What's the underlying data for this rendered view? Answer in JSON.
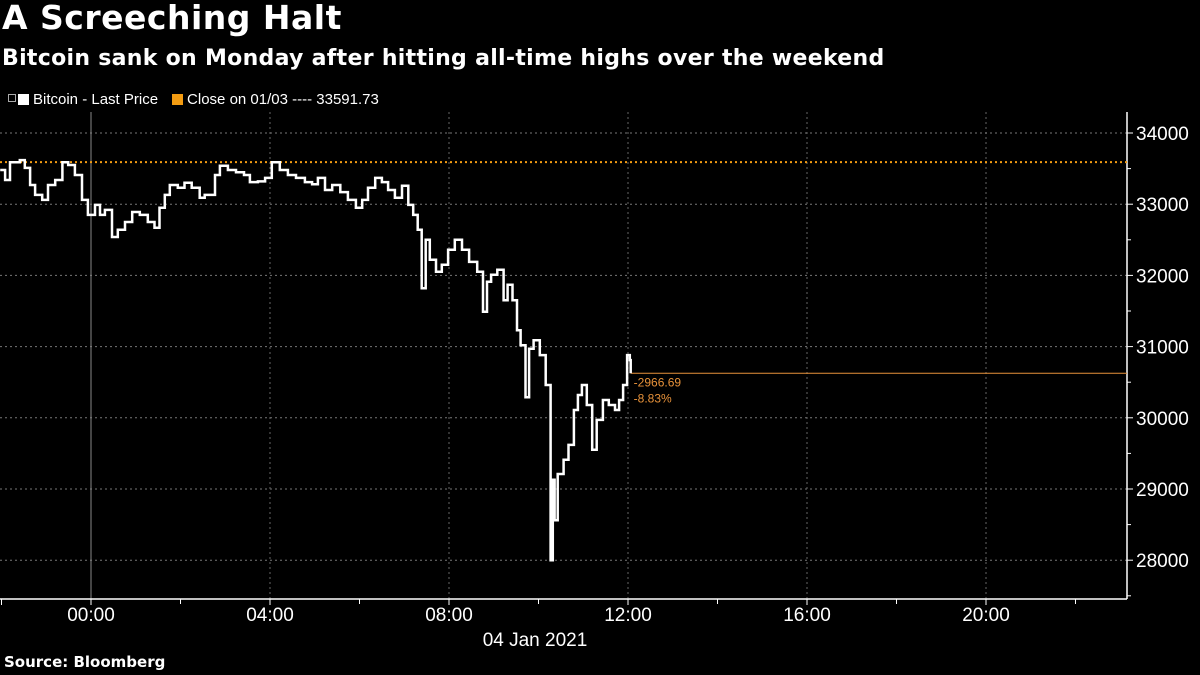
{
  "header": {
    "title": "A Screeching Halt",
    "subtitle": "Bitcoin sank on Monday after hitting all-time highs over the weekend"
  },
  "legend": {
    "items": [
      {
        "label": "Bitcoin - Last Price",
        "color": "#ffffff"
      },
      {
        "label": "Close on 01/03 ---- 33591.73",
        "color": "#f39c12"
      }
    ]
  },
  "footer": {
    "source": "Source: Bloomberg"
  },
  "chart_data": {
    "type": "line",
    "title": "A Screeching Halt",
    "subtitle": "Bitcoin sank on Monday after hitting all-time highs over the weekend",
    "xlabel": "04 Jan 2021",
    "ylabel": "",
    "x_ticks": [
      "00:00",
      "04:00",
      "08:00",
      "12:00",
      "16:00",
      "20:00"
    ],
    "y_ticks": [
      28000,
      29000,
      30000,
      31000,
      32000,
      33000,
      34000
    ],
    "ylim": [
      27450,
      34200
    ],
    "xlim_hours": [
      -2.03,
      23.2
    ],
    "grid": true,
    "legend_position": "top-left",
    "reference_line": {
      "name": "Close on 01/03",
      "value": 33591.73,
      "color": "#f39c12",
      "style": "dotted"
    },
    "last_value_line": {
      "value": 30625.04,
      "color": "#e8923a"
    },
    "annotations": [
      {
        "text": "-2966.69",
        "hour": 12.0
      },
      {
        "text": "-8.83%",
        "hour": 12.0
      }
    ],
    "series": [
      {
        "name": "Bitcoin - Last Price",
        "color": "#ffffff",
        "x_hours": [
          -2.03,
          -1.92,
          -1.81,
          -1.59,
          -1.48,
          -1.36,
          -1.25,
          -1.09,
          -0.96,
          -0.8,
          -0.64,
          -0.51,
          -0.36,
          -0.2,
          -0.07,
          0.09,
          0.2,
          0.31,
          0.47,
          0.6,
          0.76,
          0.92,
          1.09,
          1.27,
          1.42,
          1.53,
          1.65,
          1.76,
          1.94,
          2.09,
          2.25,
          2.43,
          2.54,
          2.77,
          2.88,
          3.06,
          3.24,
          3.42,
          3.55,
          3.73,
          3.89,
          4.04,
          4.22,
          4.4,
          4.58,
          4.78,
          4.94,
          5.07,
          5.23,
          5.39,
          5.57,
          5.74,
          5.92,
          6.06,
          6.19,
          6.35,
          6.5,
          6.64,
          6.79,
          6.95,
          7.09,
          7.2,
          7.3,
          7.39,
          7.48,
          7.57,
          7.71,
          7.84,
          7.98,
          8.13,
          8.29,
          8.45,
          8.63,
          8.76,
          8.85,
          8.94,
          9.08,
          9.22,
          9.31,
          9.42,
          9.52,
          9.6,
          9.71,
          9.79,
          9.89,
          10.03,
          10.16,
          10.27,
          10.32,
          10.36,
          10.43,
          10.56,
          10.67,
          10.79,
          10.88,
          10.97,
          11.08,
          11.2,
          11.3,
          11.44,
          11.57,
          11.71,
          11.8,
          11.89,
          11.98,
          12.04,
          12.06
        ],
        "values": [
          33480,
          33340,
          33590,
          33620,
          33510,
          33270,
          33130,
          33060,
          33270,
          33340,
          33590,
          33550,
          33410,
          33060,
          32850,
          32990,
          32850,
          32920,
          32540,
          32640,
          32750,
          32890,
          32850,
          32750,
          32670,
          32950,
          33130,
          33270,
          33230,
          33300,
          33230,
          33090,
          33130,
          33410,
          33540,
          33480,
          33450,
          33410,
          33310,
          33320,
          33370,
          33590,
          33480,
          33410,
          33370,
          33310,
          33280,
          33370,
          33200,
          33270,
          33170,
          33060,
          32950,
          33060,
          33230,
          33370,
          33310,
          33200,
          33090,
          33260,
          32990,
          32850,
          32640,
          31820,
          32500,
          32220,
          32050,
          32150,
          32360,
          32500,
          32360,
          32190,
          32050,
          31490,
          31910,
          32010,
          32080,
          31650,
          31870,
          31650,
          31230,
          31020,
          30290,
          30970,
          31090,
          30880,
          30460,
          28000,
          29130,
          28560,
          29210,
          29410,
          29620,
          30110,
          30320,
          30460,
          30180,
          29550,
          29970,
          30250,
          30180,
          30110,
          30250,
          30460,
          30880,
          30810,
          30625
        ]
      }
    ]
  }
}
